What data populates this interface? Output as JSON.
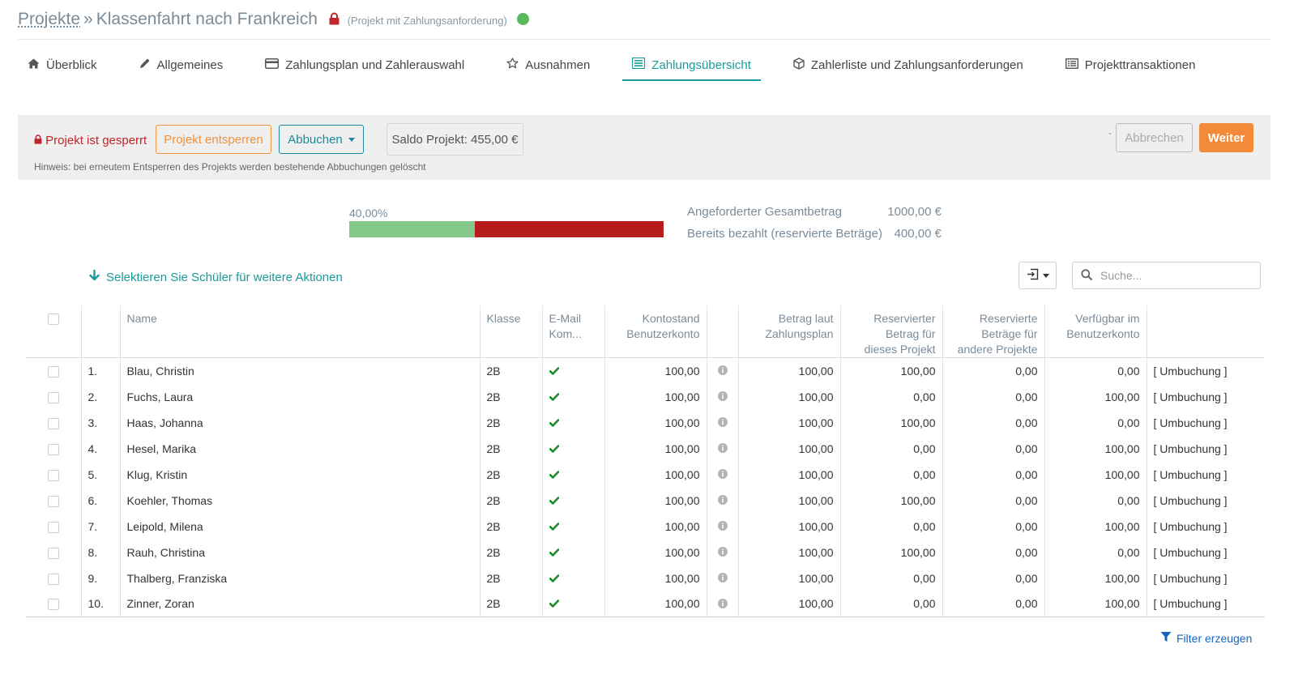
{
  "header": {
    "breadcrumb": "Projekte",
    "separator": "»",
    "title": "Klassenfahrt nach Frankreich",
    "subtitle": "(Projekt mit Zahlungsanforderung)",
    "lock_color": "#c0262b",
    "status_color": "#5cb85c"
  },
  "tabs": [
    {
      "label": "Überblick",
      "icon": "home-icon",
      "active": false
    },
    {
      "label": "Allgemeines",
      "icon": "pencil-icon",
      "active": false
    },
    {
      "label": "Zahlungsplan und Zahlerauswahl",
      "icon": "credit-card-icon",
      "active": false
    },
    {
      "label": "Ausnahmen",
      "icon": "star-icon",
      "active": false
    },
    {
      "label": "Zahlungsübersicht",
      "icon": "list-icon",
      "active": true
    },
    {
      "label": "Zahlerliste und Zahlungsanforderungen",
      "icon": "cube-icon",
      "active": false
    },
    {
      "label": "Projekttransaktionen",
      "icon": "document-list-icon",
      "active": false
    }
  ],
  "actions": {
    "locked_text": "Projekt ist gesperrt",
    "unlock_label": "Projekt entsperren",
    "book_label": "Abbuchen",
    "saldo": "Saldo Projekt: 455,00 €",
    "hint": "Hinweis: bei erneutem Entsperren des Projekts werden bestehende Abbuchungen gelöscht",
    "stray_mark": "`",
    "cancel_label": "Abbrechen",
    "next_label": "Weiter",
    "accent_color": "#f38a3a",
    "primary_color": "#1a8a9a"
  },
  "progress": {
    "percent_label": "40,00%",
    "percent": 40,
    "rows": [
      {
        "label": "Angeforderter Gesamtbetrag",
        "value": "1000,00 €"
      },
      {
        "label": "Bereits bezahlt (reservierte Beträge)",
        "value": "400,00 €"
      }
    ],
    "paid_color": "#84c98a",
    "open_color": "#b71c1c"
  },
  "toolbar": {
    "select_hint": "Selektieren Sie Schüler für weitere Aktionen",
    "search_placeholder": "Suche..."
  },
  "table": {
    "headers": {
      "name": "Name",
      "klasse": "Klasse",
      "email_line1": "E-Mail",
      "email_line2": "Kom...",
      "konto_line1": "Kontostand",
      "konto_line2": "Benutzerkonto",
      "betrag_line1": "Betrag laut",
      "betrag_line2": "Zahlungsplan",
      "res_line1": "Reservierter",
      "res_line2": "Betrag für",
      "res_line3": "dieses Projekt",
      "resa_line1": "Reservierte",
      "resa_line2": "Beträge für",
      "resa_line3": "andere Projekte",
      "verf_line1": "Verfügbar im",
      "verf_line2": "Benutzerkonto"
    },
    "rows": [
      {
        "no": "1.",
        "name": "Blau, Christin",
        "klasse": "2B",
        "konto": "100,00",
        "betrag": "100,00",
        "reserviert": "100,00",
        "reserviert_status": "pos",
        "andere": "0,00",
        "verfuegbar": "0,00",
        "action": "[ Umbuchung ]"
      },
      {
        "no": "2.",
        "name": "Fuchs, Laura",
        "klasse": "2B",
        "konto": "100,00",
        "betrag": "100,00",
        "reserviert": "0,00",
        "reserviert_status": "neg",
        "andere": "0,00",
        "verfuegbar": "100,00",
        "action": "[ Umbuchung ]"
      },
      {
        "no": "3.",
        "name": "Haas, Johanna",
        "klasse": "2B",
        "konto": "100,00",
        "betrag": "100,00",
        "reserviert": "100,00",
        "reserviert_status": "pos",
        "andere": "0,00",
        "verfuegbar": "0,00",
        "action": "[ Umbuchung ]"
      },
      {
        "no": "4.",
        "name": "Hesel, Marika",
        "klasse": "2B",
        "konto": "100,00",
        "betrag": "100,00",
        "reserviert": "0,00",
        "reserviert_status": "neg",
        "andere": "0,00",
        "verfuegbar": "100,00",
        "action": "[ Umbuchung ]"
      },
      {
        "no": "5.",
        "name": "Klug, Kristin",
        "klasse": "2B",
        "konto": "100,00",
        "betrag": "100,00",
        "reserviert": "0,00",
        "reserviert_status": "neg",
        "andere": "0,00",
        "verfuegbar": "100,00",
        "action": "[ Umbuchung ]"
      },
      {
        "no": "6.",
        "name": "Koehler, Thomas",
        "klasse": "2B",
        "konto": "100,00",
        "betrag": "100,00",
        "reserviert": "100,00",
        "reserviert_status": "pos",
        "andere": "0,00",
        "verfuegbar": "0,00",
        "action": "[ Umbuchung ]"
      },
      {
        "no": "7.",
        "name": "Leipold, Milena",
        "klasse": "2B",
        "konto": "100,00",
        "betrag": "100,00",
        "reserviert": "0,00",
        "reserviert_status": "neg",
        "andere": "0,00",
        "verfuegbar": "100,00",
        "action": "[ Umbuchung ]"
      },
      {
        "no": "8.",
        "name": "Rauh, Christina",
        "klasse": "2B",
        "konto": "100,00",
        "betrag": "100,00",
        "reserviert": "100,00",
        "reserviert_status": "pos",
        "andere": "0,00",
        "verfuegbar": "0,00",
        "action": "[ Umbuchung ]"
      },
      {
        "no": "9.",
        "name": "Thalberg, Franziska",
        "klasse": "2B",
        "konto": "100,00",
        "betrag": "100,00",
        "reserviert": "0,00",
        "reserviert_status": "neg",
        "andere": "0,00",
        "verfuegbar": "100,00",
        "action": "[ Umbuchung ]"
      },
      {
        "no": "10.",
        "name": "Zinner, Zoran",
        "klasse": "2B",
        "konto": "100,00",
        "betrag": "100,00",
        "reserviert": "0,00",
        "reserviert_status": "neg",
        "andere": "0,00",
        "verfuegbar": "100,00",
        "action": "[ Umbuchung ]"
      }
    ]
  },
  "footer": {
    "filter_label": "Filter erzeugen"
  }
}
